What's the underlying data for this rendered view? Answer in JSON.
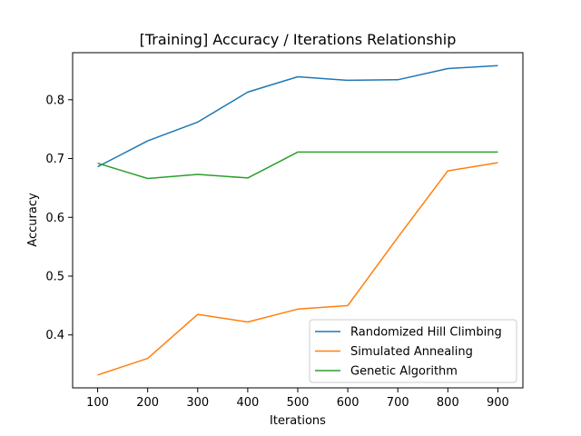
{
  "chart_data": {
    "type": "line",
    "title": "[Training] Accuracy / Iterations Relationship",
    "xlabel": "Iterations",
    "ylabel": "Accuracy",
    "x": [
      100,
      200,
      300,
      400,
      500,
      600,
      700,
      800,
      900
    ],
    "xticks": [
      100,
      200,
      300,
      400,
      500,
      600,
      700,
      800,
      900
    ],
    "yticks": [
      0.4,
      0.5,
      0.6,
      0.7,
      0.8
    ],
    "xlim": [
      50,
      950
    ],
    "ylim": [
      0.31,
      0.88
    ],
    "grid": false,
    "legend_position": "bottom-right",
    "series": [
      {
        "name": "Randomized Hill Climbing",
        "color": "#1f77b4",
        "values": [
          0.686,
          0.73,
          0.762,
          0.813,
          0.839,
          0.833,
          0.834,
          0.853,
          0.858
        ]
      },
      {
        "name": "Simulated Annealing",
        "color": "#ff7f0e",
        "values": [
          0.332,
          0.36,
          0.435,
          0.422,
          0.444,
          0.45,
          0.566,
          0.679,
          0.693
        ]
      },
      {
        "name": "Genetic Algorithm",
        "color": "#2ca02c",
        "values": [
          0.692,
          0.666,
          0.673,
          0.667,
          0.711,
          0.711,
          0.711,
          0.711,
          0.711
        ]
      }
    ]
  }
}
